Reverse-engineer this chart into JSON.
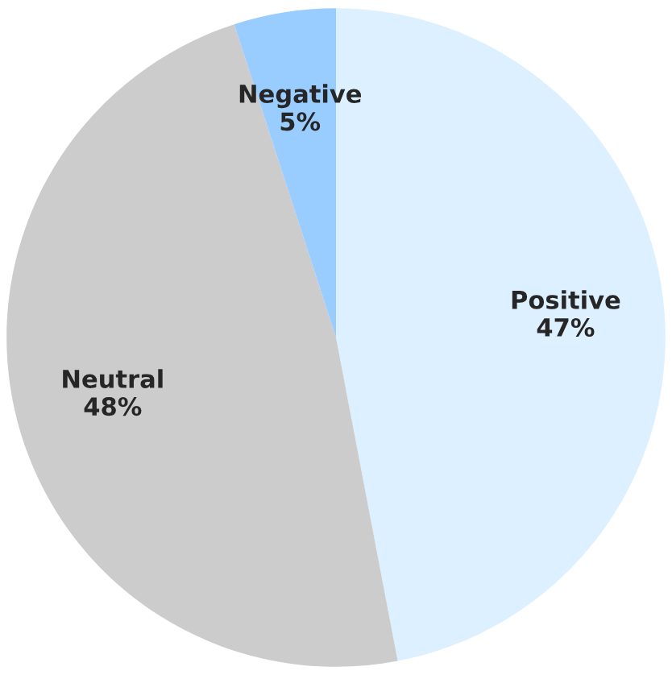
{
  "chart_data": {
    "type": "pie",
    "categories": [
      "Positive",
      "Neutral",
      "Negative"
    ],
    "values": [
      47,
      48,
      5
    ],
    "value_labels": [
      "47%",
      "48%",
      "5%"
    ],
    "colors": [
      "#ddf0ff",
      "#cccccc",
      "#99ccff"
    ]
  }
}
